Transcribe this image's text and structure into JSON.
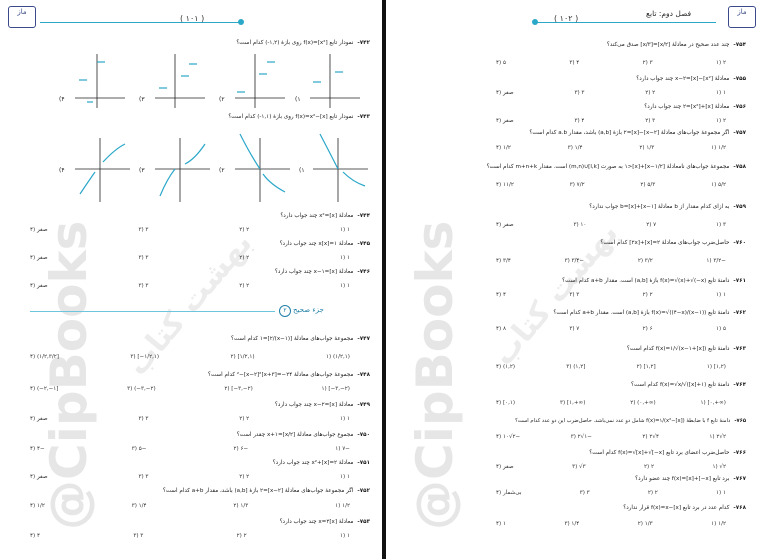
{
  "left_page": {
    "page_number": "( ۱۰۱ )",
    "logo_text": "ماز",
    "section_label": "جزء صحیح",
    "section_badge": "۲",
    "questions": [
      {
        "num": "۷۴۲-",
        "text": "نمودار تابع f(x)=[x²] روی بازهٔ (۱,۲-) کدام است؟",
        "options": [
          "۱)",
          "۲)",
          "۳)",
          "۴)"
        ]
      },
      {
        "num": "۷۴۳-",
        "text": "نمودار تابع f(x)=x²−[x] روی بازهٔ (۱,۱-) کدام است؟",
        "options": [
          "۱)",
          "۲)",
          "۳)",
          "۴)"
        ]
      },
      {
        "num": "۷۴۴-",
        "text": "معادلهٔ x²=[x] چند جواب دارد؟",
        "options": [
          "۱) ۱",
          "۲) ۲",
          "۳) ۳",
          "۴) صفر"
        ]
      },
      {
        "num": "۷۴۵-",
        "text": "معادلهٔ x[x]=۱ چند جواب دارد؟",
        "options": [
          "۱) ۱",
          "۲) ۲",
          "۳) ۳",
          "۴) صفر"
        ]
      },
      {
        "num": "۷۴۶-",
        "text": "معادلهٔ [x]=x−۱ چند جواب دارد؟",
        "options": [
          "۱) ۱",
          "۲) ۲",
          "۳) ۳",
          "۴) صفر"
        ]
      },
      {
        "num": "۷۴۷-",
        "text": "مجموعهٔ جواب‌های معادلهٔ [(x−۱)/۲]=۱ کدام است؟",
        "options": [
          "۱) (۱/۲,۱)",
          "۲) [۱/۲,۱)",
          "۳) [−۱/۲,۱)",
          "۴) (۱/۲,۳/۲]"
        ]
      },
      {
        "num": "۷۴۸-",
        "text": "مجموعهٔ جواب‌های معادلهٔ ۲۴−=[x+۳]²−[x−۲]² کدام است؟",
        "options": [
          "۱) [−۳,−۲)",
          "۲) [−۳,−۲)",
          "۳) (−۳,−۲)",
          "۴) (−۲,−۱]"
        ]
      },
      {
        "num": "۷۴۹-",
        "text": "معادلهٔ [x]=x−۲ چند جواب دارد؟",
        "options": [
          "۱) ۱",
          "۲) ۲",
          "۳) ۳",
          "۴) صفر"
        ]
      },
      {
        "num": "۷۵۰-",
        "text": "مجموع جواب‌های معادلهٔ [x/۲]=x+۱ چقدر است؟",
        "options": [
          "۱) ۷−",
          "۲) ۶−",
          "۳) ۵−",
          "۴) ۴−"
        ]
      },
      {
        "num": "۷۵۱-",
        "text": "معادلهٔ x²+[x]=۲ چند جواب دارد؟",
        "options": [
          "۱) ۱",
          "۲) ۲",
          "۳) ۳",
          "۴) صفر"
        ]
      },
      {
        "num": "۷۵۲-",
        "text": "اگر مجموعهٔ جواب‌های معادلهٔ [x−۲]=۲ بازهٔ [a,b) باشد، مقدار a+b کدام است؟",
        "options": [
          "۱) ۱/۲",
          "۲) ۱/۳",
          "۳) ۱/۴",
          "۴) ۱/۲"
        ]
      },
      {
        "num": "۷۵۳-",
        "text": "معادلهٔ x=۲[x] چند جواب دارد؟",
        "options": [
          "۱) ۱",
          "۲) ۲",
          "۳) ۳",
          "۴) ۴"
        ]
      }
    ]
  },
  "right_page": {
    "page_number": "( ۱۰۲ )",
    "logo_text": "ماز",
    "chapter_title": "فصل دوم: تابع",
    "questions": [
      {
        "num": "۷۵۴-",
        "text": "چند عدد صحیح در معادلهٔ [x/۲]=[x/۳] صدق می‌کند؟",
        "options": [
          "۱) ۲",
          "۲) ۳",
          "۳) ۴",
          "۴) ۵"
        ]
      },
      {
        "num": "۷۵۵-",
        "text": "معادلهٔ [x²]−[x]=x−۲ چند جواب دارد؟",
        "options": [
          "۱) ۱",
          "۲) ۲",
          "۳) ۳",
          "۴) صفر"
        ]
      },
      {
        "num": "۷۵۶-",
        "text": "معادلهٔ [x]+[x²]=۲ چند جواب دارد؟",
        "options": [
          "۱) ۲",
          "۲) ۳",
          "۳) ۴",
          "۴) صفر"
        ]
      },
      {
        "num": "۷۵۷-",
        "text": "اگر مجموعهٔ جواب‌های معادلهٔ [x−۲]−[x]=۲ بازهٔ [a,b) باشد، مقدار a.b کدام است؟",
        "options": [
          "۱) ۱/۲",
          "۲) ۱/۳",
          "۳) ۱/۴",
          "۴) ۱/۲"
        ]
      },
      {
        "num": "۷۵۸-",
        "text": "مجموعهٔ جواب‌های نامعادلهٔ [x−۱/۲]+[x]<۱ به صورت [m,n)∪[l,k) است. مقدار m+n+k کدام است؟",
        "options": [
          "۱) ۵/۲",
          "۲) ۵/۳",
          "۳) ۷/۲",
          "۴) ۱۱/۲"
        ]
      },
      {
        "num": "۷۵۹-",
        "text": "به ازای کدام مقدار از b معادلهٔ [x−۱]+[x]=b جواب ندارد؟",
        "options": [
          "۱) ۳",
          "۲) ۷",
          "۳) ۱۰",
          "۴) صفر"
        ]
      },
      {
        "num": "۷۶۰-",
        "text": "حاصل‌ضرب جواب‌های معادلهٔ ۲=[x]+[۲x] کدام است؟",
        "options": [
          "۱) ۳/۲−",
          "۲) ۳/۲",
          "۳) ۳/۴−",
          "۴) ۳/۴"
        ]
      },
      {
        "num": "۷۶۱-",
        "text": "دامنهٔ تابع f(x)=√(x)+√(−x) بازهٔ [a,b) است. مقدار a+b کدام است؟",
        "options": [
          "۱) ۱",
          "۲) ۲",
          "۳) ۳",
          "۴) ۴"
        ]
      },
      {
        "num": "۷۶۲-",
        "text": "دامنهٔ تابع f(x)=√((۴−x)/(x−۱)) بازهٔ [a,b) است. مقدار a+b کدام است؟",
        "options": [
          "۱) ۵",
          "۲) ۶",
          "۳) ۷",
          "۴) ۸"
        ]
      },
      {
        "num": "۷۶۳-",
        "text": "دامنهٔ تابع f(x)=۱/√(x−۱+[x]) کدام است؟",
        "options": [
          "۱) [۱,۲)",
          "۲) [۱,۲]",
          "۳) (۱,۲]",
          "۴) (۱,۲)"
        ]
      },
      {
        "num": "۷۶۴-",
        "text": "دامنهٔ تابع f(x)=√x/√([x]+۱) کدام است؟",
        "options": [
          "۱) [۰,+∞)",
          "۲) (۰,+∞)",
          "۳) [۱,+∞)",
          "۴) [۰,۱)"
        ]
      },
      {
        "num": "۷۶۵-",
        "text": "دامنهٔ تابع f با ضابطهٔ f(x)=۱/(x²−[x]) شامل دو عدد نمی‌باشد. حاصل‌ضرب این دو عدد کدام است؟",
        "options": [
          "۱) ۲√۲",
          "۲) ۲√۴",
          "۳) ۲√۱−",
          "۴) ۱۰√۲−"
        ]
      },
      {
        "num": "۷۶۶-",
        "text": "حاصل‌ضرب اعضای برد تابع f(x)=√[x]+√[−x] کدام است؟",
        "options": [
          "۱) √۲",
          "۲) ۲",
          "۳) √۳",
          "۴) صفر"
        ]
      },
      {
        "num": "۷۶۷-",
        "text": "برد تابع f(x)=[x]+[−x] چند عضو دارد؟",
        "options": [
          "۱) ۱",
          "۲) ۲",
          "۳) ۳",
          "۴) بی‌شمار"
        ]
      },
      {
        "num": "۷۶۸-",
        "text": "کدام عدد در برد تابع f(x)=x−[x] قرار ندارد؟",
        "options": [
          "۱) ۱/۲",
          "۲) ۱/۳",
          "۳) ۱/۴",
          "۴) ۱"
        ]
      }
    ]
  },
  "watermark": {
    "left_vertical": "@CipBooks",
    "right_vertical": "@CipBooks",
    "left_diagonal": "بهشت کتاب",
    "right_diagonal": "بهشت کتاب"
  },
  "graph_labels": {
    "axis_x": "x",
    "axis_y": "y",
    "options": [
      "(۱",
      "(۲",
      "(۳",
      "(۴"
    ]
  },
  "colors": {
    "accent": "#2aa7c9",
    "section": "#1f7fa7",
    "logo": "#3b4a8a",
    "watermark": "#e5e5e5"
  }
}
